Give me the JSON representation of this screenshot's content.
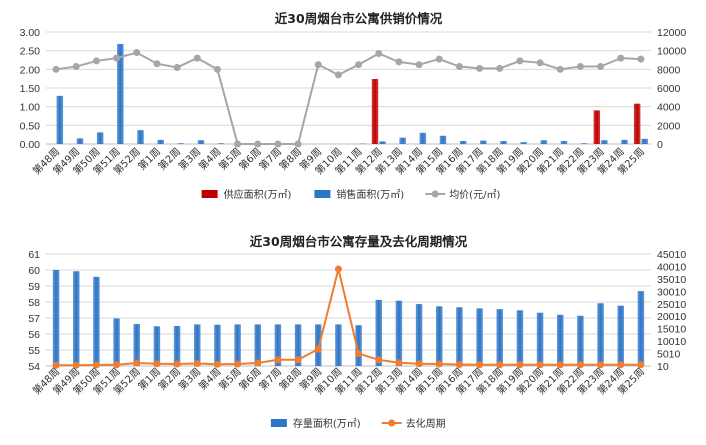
{
  "chart_data": [
    {
      "type": "bar",
      "title": "近30周烟台市公寓供销价情况",
      "categories": [
        "第48周",
        "第49周",
        "第50周",
        "第51周",
        "第52周",
        "第1周",
        "第2周",
        "第3周",
        "第4周",
        "第5周",
        "第6周",
        "第7周",
        "第8周",
        "第9周",
        "第10周",
        "第11周",
        "第12周",
        "第13周",
        "第14周",
        "第15周",
        "第16周",
        "第17周",
        "第18周",
        "第19周",
        "第20周",
        "第21周",
        "第22周",
        "第23周",
        "第24周",
        "第25周"
      ],
      "y_left": {
        "ticks": [
          "0.00",
          "0.50",
          "1.00",
          "1.50",
          "2.00",
          "2.50",
          "3.00"
        ],
        "lim": [
          0,
          3
        ]
      },
      "y_right": {
        "ticks": [
          "0",
          "2000",
          "4000",
          "6000",
          "8000",
          "10000",
          "12000"
        ],
        "lim": [
          0,
          12000
        ]
      },
      "series": [
        {
          "name": "供应面积(万㎡)",
          "kind": "bar",
          "axis": "left",
          "color": "#c00000",
          "values": [
            0,
            0,
            0,
            0,
            0,
            0,
            0,
            0,
            0,
            0,
            0,
            0,
            0,
            0,
            0,
            0,
            1.74,
            0,
            0,
            0,
            0,
            0,
            0,
            0,
            0,
            0,
            0,
            0.9,
            0,
            1.08
          ]
        },
        {
          "name": "销售面积(万㎡)",
          "kind": "bar",
          "axis": "left",
          "color": "#2e75c8",
          "values": [
            1.29,
            0.15,
            0.31,
            2.68,
            0.37,
            0.11,
            0.02,
            0.1,
            0.02,
            0,
            0,
            0,
            0,
            0,
            0,
            0.01,
            0.07,
            0.17,
            0.3,
            0.22,
            0.08,
            0.09,
            0.08,
            0.05,
            0.1,
            0.08,
            0.02,
            0.1,
            0.11,
            0.14
          ]
        },
        {
          "name": "均价(元/㎡)",
          "kind": "line",
          "axis": "right",
          "color": "#a6a6a6",
          "values": [
            8000,
            8300,
            8900,
            9200,
            9800,
            8600,
            8200,
            9200,
            8000,
            0,
            0,
            0,
            0,
            8500,
            7400,
            8500,
            9700,
            8800,
            8500,
            9100,
            8300,
            8100,
            8100,
            8900,
            8700,
            8000,
            8300,
            8300,
            9200,
            9100
          ]
        }
      ],
      "legend_position": "bottom"
    },
    {
      "type": "bar",
      "title": "近30周烟台市公寓存量及去化周期情况",
      "categories": [
        "第48周",
        "第49周",
        "第50周",
        "第51周",
        "第52周",
        "第1周",
        "第2周",
        "第3周",
        "第4周",
        "第5周",
        "第6周",
        "第7周",
        "第8周",
        "第9周",
        "第10周",
        "第11周",
        "第12周",
        "第13周",
        "第14周",
        "第15周",
        "第16周",
        "第17周",
        "第18周",
        "第19周",
        "第20周",
        "第21周",
        "第22周",
        "第23周",
        "第24周",
        "第25周"
      ],
      "y_left": {
        "ticks": [
          "54",
          "55",
          "56",
          "57",
          "58",
          "59",
          "60",
          "61"
        ],
        "lim": [
          54,
          61
        ]
      },
      "y_right": {
        "ticks": [
          "10",
          "5010",
          "10010",
          "15010",
          "20010",
          "25010",
          "30010",
          "35010",
          "40010",
          "45010"
        ],
        "lim": [
          10,
          45010
        ]
      },
      "series": [
        {
          "name": "存量面积(万㎡)",
          "kind": "bar",
          "axis": "left",
          "color": "#2e75c8",
          "values": [
            60,
            59.92,
            59.57,
            56.97,
            56.62,
            56.48,
            56.5,
            56.6,
            56.58,
            56.6,
            56.6,
            56.6,
            56.6,
            56.6,
            56.6,
            56.55,
            58.13,
            58.08,
            57.87,
            57.73,
            57.67,
            57.6,
            57.55,
            57.48,
            57.33,
            57.2,
            57.14,
            57.92,
            57.77,
            58.68
          ]
        },
        {
          "name": "去化周期",
          "kind": "line",
          "axis": "right",
          "color": "#ed7d31",
          "values": [
            300,
            300,
            400,
            500,
            1200,
            900,
            800,
            1000,
            700,
            800,
            1200,
            2500,
            2500,
            6800,
            39000,
            5000,
            2500,
            1300,
            900,
            800,
            600,
            500,
            500,
            500,
            500,
            500,
            500,
            500,
            500,
            500
          ]
        }
      ],
      "legend_position": "bottom"
    }
  ]
}
